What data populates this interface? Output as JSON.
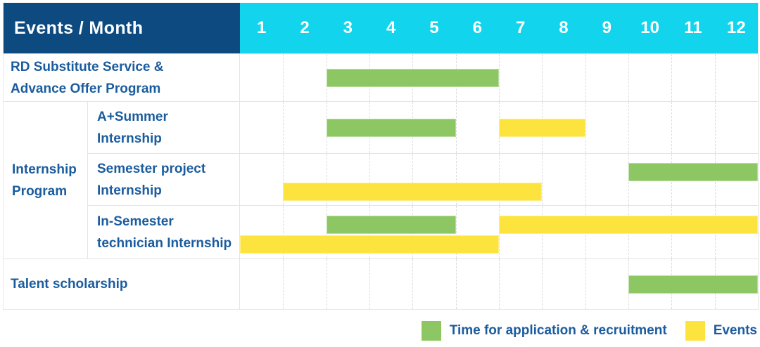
{
  "header": {
    "title": "Events / Month"
  },
  "colors": {
    "header_bg": "#0D4A80",
    "months_bg": "#12D4EC",
    "header_text": "#FFFFFF",
    "label_text": "#1B5C9E",
    "application_green": "#8CC763",
    "events_yellow": "#FDE33E",
    "grid_line": "#E4E4E4"
  },
  "chart_data": {
    "type": "gantt",
    "title": "Events / Month",
    "xlabel": "Month",
    "months": [
      1,
      2,
      3,
      4,
      5,
      6,
      7,
      8,
      9,
      10,
      11,
      12
    ],
    "x_range": [
      1,
      12
    ],
    "grid": "vertical-dashed",
    "legend_position": "bottom-right",
    "legend": [
      {
        "key": "application",
        "label": "Time for application & recruitment",
        "color": "#8CC763"
      },
      {
        "key": "event",
        "label": "Events",
        "color": "#FDE33E"
      }
    ],
    "groups": [
      {
        "label_lines": [
          "Internship",
          "Program"
        ],
        "rows": [
          1,
          2,
          3
        ]
      }
    ],
    "rows": [
      {
        "label_lines": [
          "RD Substitute Service &",
          "Advance Offer Program"
        ],
        "bars": [
          {
            "kind": "application",
            "start": 3,
            "end": 6,
            "lane": "center"
          }
        ]
      },
      {
        "label_lines": [
          "A+Summer",
          "Internship"
        ],
        "bars": [
          {
            "kind": "application",
            "start": 3,
            "end": 5,
            "lane": "center"
          },
          {
            "kind": "event",
            "start": 7,
            "end": 8,
            "lane": "center"
          }
        ]
      },
      {
        "label_lines": [
          "Semester project",
          "Internship"
        ],
        "bars": [
          {
            "kind": "application",
            "start": 10,
            "end": 12,
            "lane": "upper"
          },
          {
            "kind": "event",
            "start": 2,
            "end": 7,
            "lane": "lower"
          }
        ]
      },
      {
        "label_lines": [
          "In-Semester",
          "technician Internship"
        ],
        "bars": [
          {
            "kind": "application",
            "start": 3,
            "end": 5,
            "lane": "upper"
          },
          {
            "kind": "event",
            "start": 7,
            "end": 12,
            "lane": "upper"
          },
          {
            "kind": "event",
            "start": 1,
            "end": 6,
            "lane": "lower"
          }
        ]
      },
      {
        "label_lines": [
          "Talent scholarship"
        ],
        "bars": [
          {
            "kind": "application",
            "start": 10,
            "end": 12,
            "lane": "center"
          }
        ]
      }
    ]
  }
}
